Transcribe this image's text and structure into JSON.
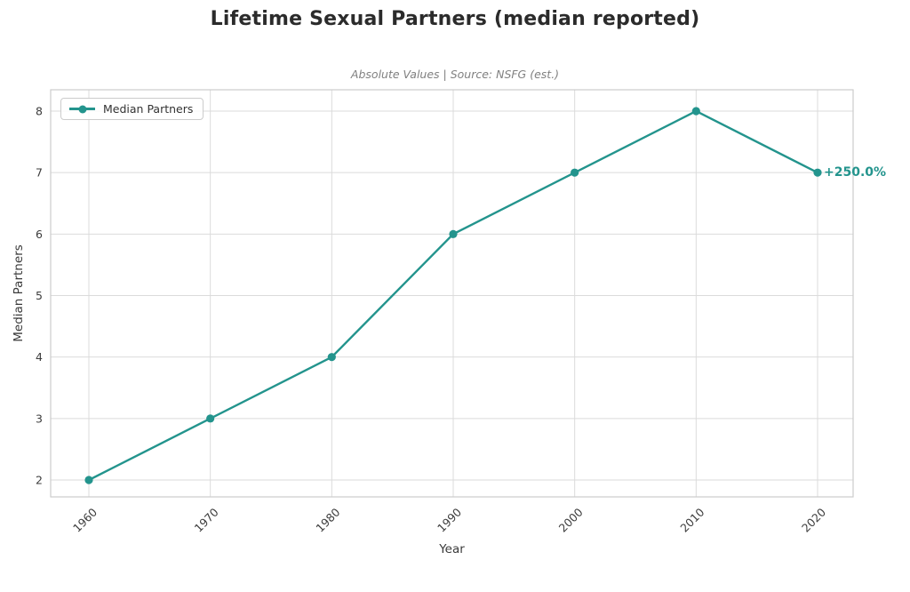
{
  "colors": {
    "accent": "#23948D",
    "grid": "#DBDBDB",
    "spine": "#CCCCCC",
    "tick_label": "#3C3C3C",
    "title": "#2B2B2B",
    "subtitle": "#808080"
  },
  "chart_data": {
    "type": "line",
    "title": "Lifetime Sexual Partners (median reported)",
    "subtitle": "Absolute Values | Source: NSFG (est.)",
    "xlabel": "Year",
    "ylabel": "Median Partners",
    "x": [
      1960,
      1970,
      1980,
      1990,
      2000,
      2010,
      2020
    ],
    "series": [
      {
        "name": "Median Partners",
        "color": "#23948D",
        "values": [
          2,
          3,
          4,
          6,
          7,
          8,
          7
        ]
      }
    ],
    "xticks": [
      1960,
      1970,
      1980,
      1990,
      2000,
      2010,
      2020
    ],
    "yticks": [
      2,
      3,
      4,
      5,
      6,
      7,
      8
    ],
    "xlim": [
      1956.9,
      2022.9
    ],
    "ylim": [
      1.73,
      8.33
    ],
    "grid": true,
    "legend_position": "upper left",
    "annotation": {
      "text": "+250.0%",
      "x": 2020,
      "y": 7
    }
  }
}
